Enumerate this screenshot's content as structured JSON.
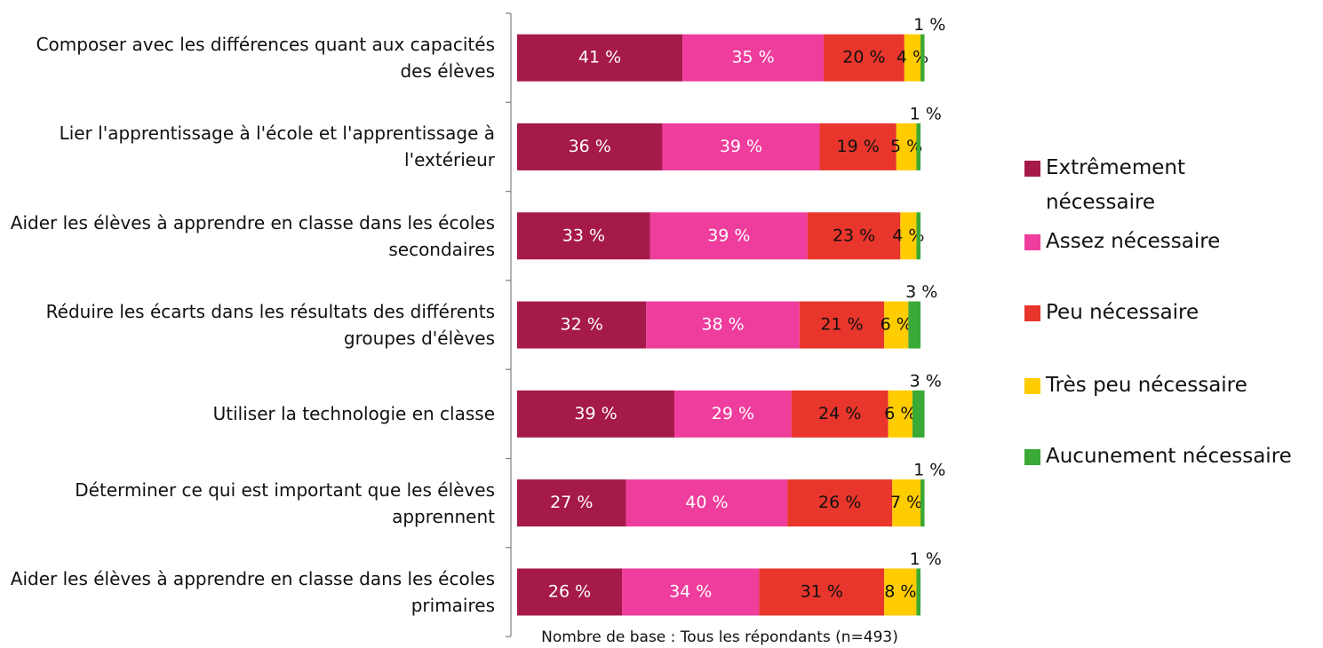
{
  "chart_data": {
    "type": "stacked-bar-horizontal",
    "categories": [
      "Composer avec les différences quant aux capacités des élèves",
      "Lier l'apprentissage à l'école et l'apprentissage à l'extérieur",
      "Aider les élèves à apprendre en classe dans les écoles secondaires",
      "Réduire les écarts dans les résultats des différents groupes d'élèves",
      "Utiliser la technologie en classe",
      "Déterminer ce qui est important que les élèves apprennent",
      "Aider les élèves à apprendre en classe dans les écoles primaires"
    ],
    "series": [
      {
        "name": "Extrêmement nécessaire",
        "color": "#a6194b",
        "values": [
          41,
          36,
          33,
          32,
          39,
          27,
          26
        ],
        "value_labels": [
          "41 %",
          "36 %",
          "33 %",
          "32 %",
          "39 %",
          "27 %",
          "26 %"
        ]
      },
      {
        "name": "Assez nécessaire",
        "color": "#ee3d9c",
        "values": [
          35,
          39,
          39,
          38,
          29,
          40,
          34
        ],
        "value_labels": [
          "35 %",
          "39 %",
          "39 %",
          "38 %",
          "29 %",
          "40 %",
          "34 %"
        ]
      },
      {
        "name": "Peu nécessaire",
        "color": "#e8362c",
        "values": [
          20,
          19,
          23,
          21,
          24,
          26,
          31
        ],
        "value_labels": [
          "20 %",
          "19 %",
          "23 %",
          "21 %",
          "24 %",
          "26 %",
          "31 %"
        ]
      },
      {
        "name": "Très peu nécessaire",
        "color": "#ffcc00",
        "values": [
          4,
          5,
          4,
          6,
          6,
          7,
          8
        ],
        "value_labels": [
          "4 %",
          "5 %",
          "4 %",
          "6 %",
          "6 %",
          "7 %",
          "8 %"
        ]
      },
      {
        "name": "Aucunement nécessaire",
        "color": "#3aa935",
        "values": [
          1,
          1,
          1,
          3,
          3,
          1,
          1
        ],
        "value_labels": [
          "1 %",
          "1 %",
          null,
          "3 %",
          "3 %",
          "1 %",
          "1 %"
        ]
      }
    ],
    "note": "Nombre de base : Tous les répondants (n=493)"
  }
}
